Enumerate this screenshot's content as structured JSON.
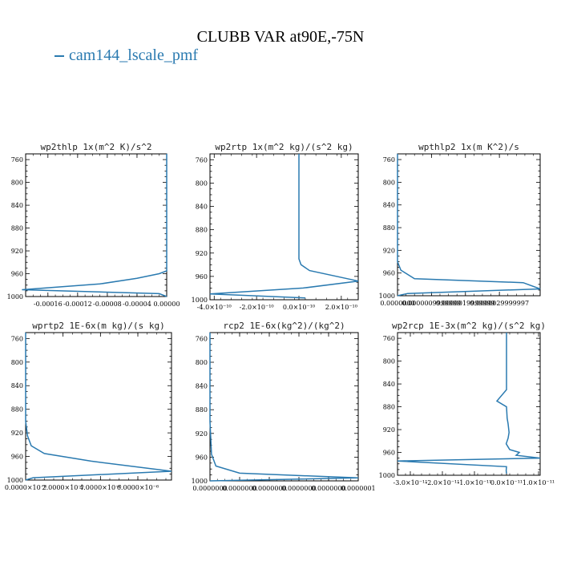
{
  "title": "CLUBB VAR at90E,-75N",
  "legend": [
    {
      "label": "cam144_lscale_pmf",
      "color": "#2a7ab0"
    }
  ],
  "line_color": "#2a7ab0",
  "chart_data": [
    {
      "type": "line",
      "title": "wp2thlp  1x(m^2 K)/s^2",
      "xlim": [
        -0.00019,
        0.0
      ],
      "ylim": [
        1000,
        750
      ],
      "yticks": [
        760,
        800,
        840,
        880,
        920,
        960,
        1000
      ],
      "xticks": [
        -0.00016,
        -0.00012,
        -8e-05,
        -4e-05,
        0.0
      ],
      "xtick_labels": [
        "-0.00016",
        "-0.00012",
        "-0.00008",
        "-0.00004",
        "0.00000"
      ],
      "series": [
        {
          "x": [
            0,
            0,
            0,
            0,
            0,
            0,
            0,
            -1e-05,
            -4e-05,
            -9e-05,
            -0.000195,
            -1e-05,
            0
          ],
          "y": [
            750,
            800,
            850,
            900,
            930,
            945,
            955,
            960,
            968,
            978,
            988,
            995,
            1000
          ]
        }
      ]
    },
    {
      "type": "line",
      "title": "wp2rtp  1x(m^2 kg)/(s^2 kg)",
      "xlim": [
        -4.2e-10,
        2.8e-10
      ],
      "ylim": [
        1000,
        750
      ],
      "yticks": [
        760,
        800,
        840,
        880,
        920,
        960,
        1000
      ],
      "xticks": [
        -4e-10,
        -2e-10,
        0.0,
        2e-10
      ],
      "xtick_labels": [
        "-4.0×10⁻¹⁰",
        "-2.0×10⁻¹⁰",
        "0.0×10⁻¹⁰",
        "2.0×10⁻¹⁰"
      ],
      "series": [
        {
          "x": [
            0,
            0,
            0,
            0,
            0,
            0,
            1e-11,
            5e-11,
            2.8e-10,
            2e-11,
            -4.2e-10,
            3e-11
          ],
          "y": [
            750,
            800,
            850,
            900,
            920,
            930,
            940,
            950,
            968,
            980,
            990,
            997
          ]
        }
      ]
    },
    {
      "type": "line",
      "title": "wpthlp2  1x(m K^2)/s",
      "xlim": [
        0.0,
        4.2e-06
      ],
      "ylim": [
        1000,
        750
      ],
      "yticks": [
        760,
        800,
        840,
        880,
        920,
        960,
        1000
      ],
      "xticks": [
        0.0,
        1e-06,
        2e-06,
        3e-06
      ],
      "xtick_labels": [
        "0.0000000",
        "0.0000009999999",
        "0.0000019999999",
        "0.0000029999997"
      ],
      "series": [
        {
          "x": [
            0,
            0,
            0,
            0,
            0,
            1e-07,
            5e-07,
            3.7e-06,
            4.2e-06,
            3e-07,
            0
          ],
          "y": [
            750,
            800,
            850,
            900,
            940,
            955,
            970,
            977,
            988,
            996,
            1000
          ]
        }
      ]
    },
    {
      "type": "line",
      "title": "wprtp2  1E-6x(m kg)/(s kg)",
      "xlim": [
        0.0,
        7.8e-06
      ],
      "ylim": [
        1000,
        750
      ],
      "yticks": [
        760,
        800,
        840,
        880,
        920,
        960,
        1000
      ],
      "xticks": [
        0.0,
        2e-06,
        4e-06,
        6e-06
      ],
      "xtick_labels": [
        "0.0000×10⁻⁶",
        "2.0000×10⁻⁶",
        "4.0000×10⁻⁶",
        "6.0000×10⁻⁶"
      ],
      "series": [
        {
          "x": [
            0,
            0,
            0,
            0,
            1e-07,
            3e-07,
            1e-06,
            3.5e-06,
            7.8e-06,
            4e-07,
            0
          ],
          "y": [
            750,
            800,
            850,
            900,
            925,
            942,
            955,
            968,
            985,
            996,
            1000
          ]
        }
      ]
    },
    {
      "type": "line",
      "title": "rcp2  1E-6x(kg^2)/(kg^2)",
      "xlim": [
        0.0,
        1e-07
      ],
      "ylim": [
        1000,
        750
      ],
      "yticks": [
        760,
        800,
        840,
        880,
        920,
        960,
        1000
      ],
      "xticks": [
        0.0,
        2e-08,
        4e-08,
        6e-08,
        8e-08,
        1e-07
      ],
      "xtick_labels": [
        "0.0000000",
        "0.0000000",
        "0.0000000",
        "0.0000000",
        "0.0000000",
        "0.0000001"
      ],
      "series": [
        {
          "x": [
            0,
            0,
            0,
            0,
            1e-09,
            4e-09,
            2e-08,
            1e-07,
            0
          ],
          "y": [
            750,
            800,
            850,
            900,
            955,
            975,
            987,
            995,
            1000
          ]
        }
      ]
    },
    {
      "type": "line",
      "title": "wp2rcp  1E-3x(m^2 kg)/(s^2 kg)",
      "xlim": [
        -3.4e-11,
        1.05e-11
      ],
      "ylim": [
        1000,
        750
      ],
      "yticks": [
        760,
        800,
        840,
        880,
        920,
        960,
        1000
      ],
      "xticks": [
        -3e-11,
        -2e-11,
        -1e-11,
        0.0,
        1e-11
      ],
      "xtick_labels": [
        "-3.0×10⁻¹¹",
        "-2.0×10⁻¹¹",
        "-1.0×10⁻¹¹",
        "0.0×10⁻¹¹",
        "1.0×10⁻¹¹"
      ],
      "series": [
        {
          "x": [
            0,
            0,
            0,
            0,
            -3e-12,
            0,
            2e-13,
            5e-13,
            8e-13,
            5e-13,
            -1e-13,
            1e-12,
            4e-12,
            3e-12,
            1.05e-11,
            -3.4e-11,
            0,
            -1e-13,
            0
          ],
          "y": [
            750,
            800,
            840,
            850,
            870,
            880,
            900,
            910,
            925,
            935,
            945,
            955,
            960,
            965,
            970,
            975,
            985,
            992,
            997
          ]
        }
      ]
    }
  ]
}
